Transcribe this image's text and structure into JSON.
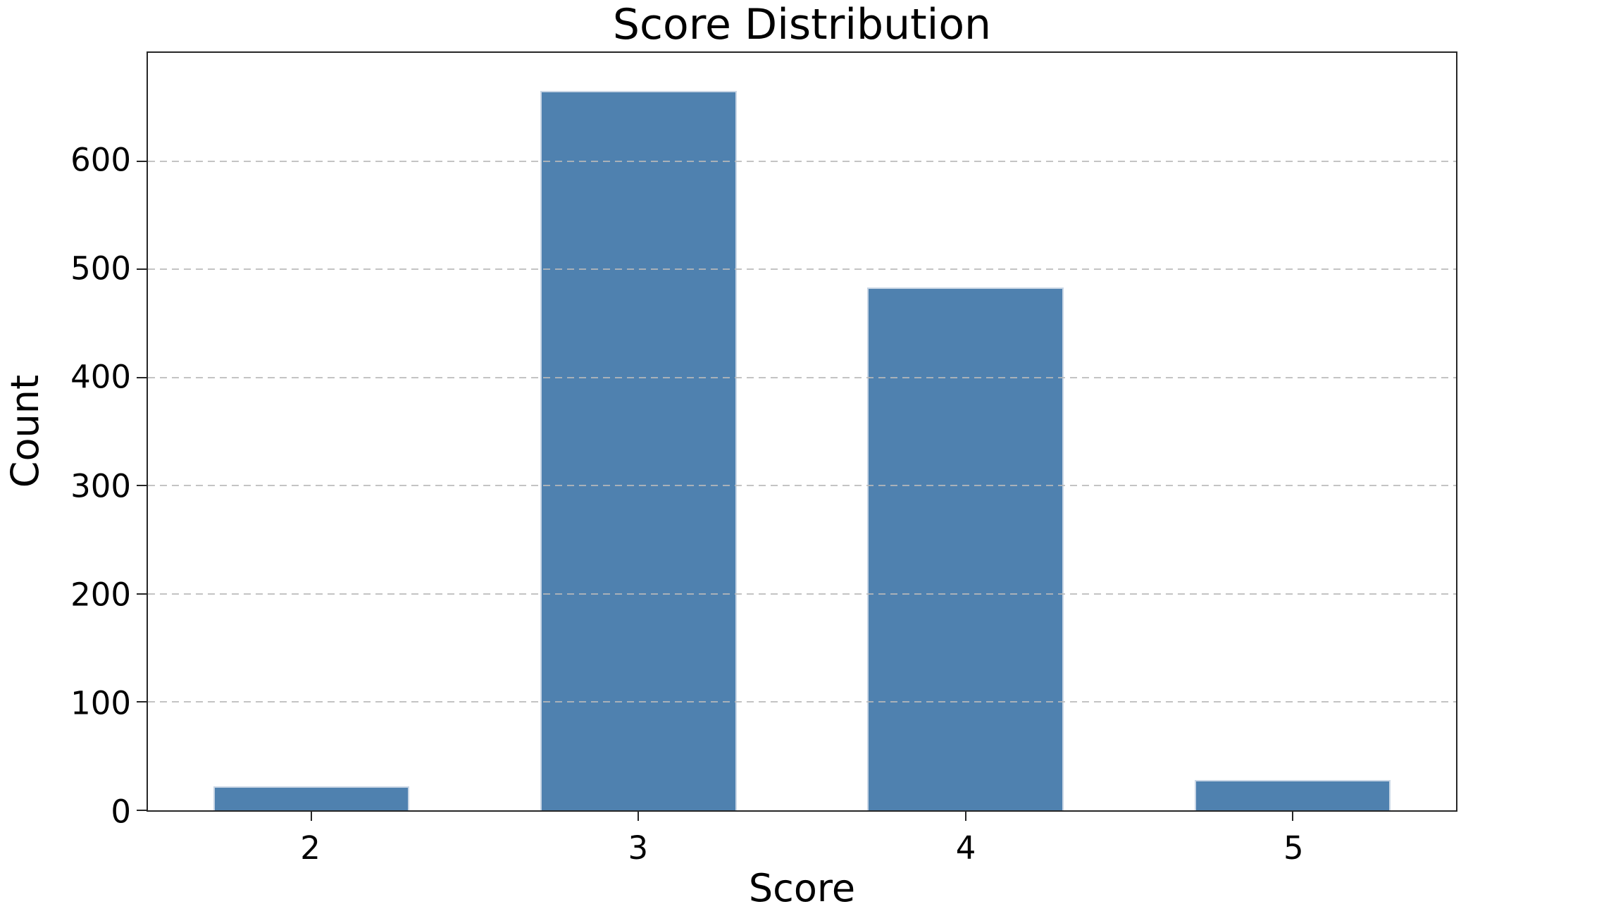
{
  "figure": {
    "background": "#ffffff"
  },
  "chart_data": {
    "type": "bar",
    "title": "Score Distribution",
    "xlabel": "Score",
    "ylabel": "Count",
    "categories": [
      "2",
      "3",
      "4",
      "5"
    ],
    "values": [
      22,
      665,
      483,
      28
    ],
    "ylim": [
      0,
      700
    ],
    "yticks": [
      0,
      100,
      200,
      300,
      400,
      500,
      600
    ],
    "grid": "horizontal-dashed-over-bars",
    "legend": "none",
    "bar_color": "#4f81af",
    "bar_edge_color": "#dee5ee",
    "bar_width_fraction": 0.6,
    "axis_color": "#262626",
    "grid_color": "#b9b9b9"
  }
}
